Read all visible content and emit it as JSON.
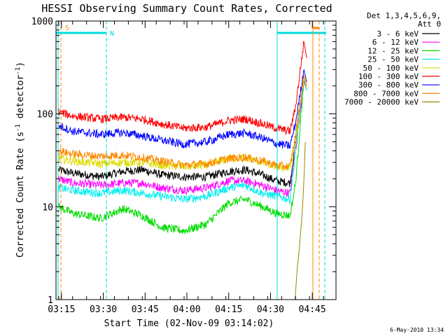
{
  "chart_data": {
    "type": "line",
    "title": "HESSI Observing Summary Count Rates, Corrected",
    "xlabel": "Start Time (02-Nov-09 03:14:02)",
    "ylabel": "Corrected Count Rate (s",
    "ylabel_sup": "-1",
    "ylabel_mid": " detector",
    "ylabel_end": ")",
    "xtick_labels": [
      "03:15",
      "03:30",
      "03:45",
      "04:00",
      "04:15",
      "04:30",
      "04:45"
    ],
    "xtick_minutes": [
      196,
      211,
      226,
      241,
      256,
      271,
      286
    ],
    "xlim_minutes": [
      194.03,
      294.5
    ],
    "ytick_labels": [
      "1",
      "10",
      "100",
      "1000"
    ],
    "ylim": [
      1,
      1000
    ],
    "yscale": "log",
    "legend_header": [
      "Det 1,3,4,5,6,9,",
      "Att 0"
    ],
    "footer_date": "6-May-2010 13:34",
    "series": [
      {
        "name": "3 - 6 keV",
        "color": "#000000",
        "values": [
          [
            195,
            25
          ],
          [
            200,
            23
          ],
          [
            210,
            21
          ],
          [
            218,
            24
          ],
          [
            225,
            25
          ],
          [
            232,
            22
          ],
          [
            240,
            21
          ],
          [
            248,
            21
          ],
          [
            256,
            24
          ],
          [
            262,
            25
          ],
          [
            268,
            22
          ],
          [
            273,
            19
          ],
          [
            278,
            18
          ],
          [
            280,
            50
          ],
          [
            283,
            230
          ],
          [
            284,
            180
          ]
        ]
      },
      {
        "name": "6 - 12 keV",
        "color": "#ff00ff",
        "values": [
          [
            195,
            20
          ],
          [
            200,
            18
          ],
          [
            210,
            17
          ],
          [
            218,
            18
          ],
          [
            225,
            18
          ],
          [
            232,
            16
          ],
          [
            240,
            15
          ],
          [
            248,
            16
          ],
          [
            256,
            19
          ],
          [
            262,
            19
          ],
          [
            268,
            17
          ],
          [
            273,
            15
          ],
          [
            278,
            14
          ],
          [
            280,
            40
          ],
          [
            283,
            230
          ],
          [
            284,
            180
          ]
        ]
      },
      {
        "name": "12 - 25 keV",
        "color": "#00dd00",
        "values": [
          [
            195,
            10
          ],
          [
            200,
            8.5
          ],
          [
            210,
            7.5
          ],
          [
            218,
            9.5
          ],
          [
            225,
            8
          ],
          [
            232,
            6
          ],
          [
            240,
            5.5
          ],
          [
            248,
            6.5
          ],
          [
            256,
            11
          ],
          [
            262,
            12
          ],
          [
            268,
            10
          ],
          [
            273,
            8.5
          ],
          [
            278,
            8
          ],
          [
            280,
            18
          ],
          [
            283,
            240
          ],
          [
            284,
            180
          ]
        ]
      },
      {
        "name": "25 - 50 keV",
        "color": "#00eeee",
        "values": [
          [
            195,
            16
          ],
          [
            200,
            15
          ],
          [
            210,
            14
          ],
          [
            218,
            15
          ],
          [
            225,
            14
          ],
          [
            232,
            13
          ],
          [
            240,
            12
          ],
          [
            248,
            13
          ],
          [
            256,
            16
          ],
          [
            262,
            17
          ],
          [
            268,
            14
          ],
          [
            273,
            13
          ],
          [
            278,
            12
          ],
          [
            280,
            40
          ],
          [
            283,
            240
          ],
          [
            284,
            180
          ]
        ]
      },
      {
        "name": "50 - 100 keV",
        "color": "#dddd00",
        "values": [
          [
            195,
            33
          ],
          [
            200,
            31
          ],
          [
            210,
            29
          ],
          [
            218,
            30
          ],
          [
            225,
            30
          ],
          [
            232,
            28
          ],
          [
            240,
            27
          ],
          [
            248,
            28
          ],
          [
            256,
            33
          ],
          [
            262,
            34
          ],
          [
            268,
            30
          ],
          [
            273,
            27
          ],
          [
            278,
            26
          ],
          [
            280,
            50
          ],
          [
            283,
            250
          ],
          [
            284,
            190
          ]
        ]
      },
      {
        "name": "100 - 300 keV",
        "color": "#ff0000",
        "values": [
          [
            195,
            105
          ],
          [
            200,
            95
          ],
          [
            210,
            88
          ],
          [
            218,
            92
          ],
          [
            225,
            88
          ],
          [
            232,
            78
          ],
          [
            240,
            70
          ],
          [
            248,
            72
          ],
          [
            256,
            85
          ],
          [
            262,
            88
          ],
          [
            268,
            78
          ],
          [
            273,
            70
          ],
          [
            278,
            65
          ],
          [
            280,
            120
          ],
          [
            283,
            600
          ],
          [
            284,
            400
          ]
        ]
      },
      {
        "name": "300 - 800 keV",
        "color": "#0000ff",
        "values": [
          [
            195,
            75
          ],
          [
            200,
            65
          ],
          [
            210,
            60
          ],
          [
            218,
            63
          ],
          [
            225,
            58
          ],
          [
            232,
            52
          ],
          [
            240,
            47
          ],
          [
            248,
            50
          ],
          [
            256,
            60
          ],
          [
            262,
            62
          ],
          [
            268,
            55
          ],
          [
            273,
            48
          ],
          [
            278,
            45
          ],
          [
            280,
            80
          ],
          [
            283,
            300
          ],
          [
            284,
            220
          ]
        ]
      },
      {
        "name": "800 - 7000 keV",
        "color": "#ff8800",
        "values": [
          [
            195,
            40
          ],
          [
            200,
            37
          ],
          [
            210,
            35
          ],
          [
            218,
            36
          ],
          [
            225,
            34
          ],
          [
            232,
            31
          ],
          [
            240,
            28
          ],
          [
            248,
            29
          ],
          [
            256,
            33
          ],
          [
            262,
            34
          ],
          [
            268,
            31
          ],
          [
            273,
            28
          ],
          [
            278,
            27
          ],
          [
            280,
            60
          ],
          [
            283,
            260
          ],
          [
            284,
            200
          ]
        ]
      },
      {
        "name": "7000 - 20000 keV",
        "color": "#998800",
        "values": [
          [
            279.8,
            1
          ],
          [
            280.5,
            2
          ],
          [
            281.5,
            4
          ],
          [
            282.5,
            10
          ],
          [
            283,
            20
          ],
          [
            283.5,
            50
          ]
        ]
      }
    ],
    "annotations": [
      {
        "label": "S",
        "color": "#ff8800"
      },
      {
        "label": "N",
        "color": "#00dddd"
      }
    ]
  }
}
